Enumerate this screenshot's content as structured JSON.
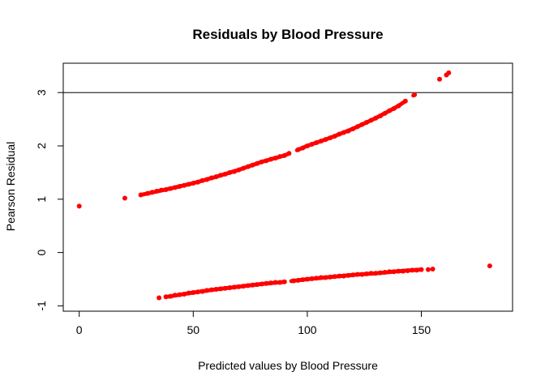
{
  "chart_data": {
    "type": "scatter",
    "title": "Residuals by Blood Pressure",
    "xlabel": "Predicted values by Blood Pressure",
    "ylabel": "Pearson Residual",
    "xlim": [
      -7,
      190
    ],
    "ylim": [
      -1.1,
      3.55
    ],
    "xticks": [
      0,
      50,
      100,
      150
    ],
    "yticks": [
      -1,
      0,
      1,
      2,
      3
    ],
    "point_color": "#ff0000",
    "hline": 3,
    "hline_color": "#000000",
    "grid": false,
    "upper_band_anchors": [
      [
        0,
        0.87
      ],
      [
        20,
        1.02
      ],
      [
        27,
        1.08
      ],
      [
        40,
        1.2
      ],
      [
        50,
        1.3
      ],
      [
        60,
        1.42
      ],
      [
        70,
        1.55
      ],
      [
        80,
        1.7
      ],
      [
        90,
        1.82
      ],
      [
        100,
        2.0
      ],
      [
        110,
        2.15
      ],
      [
        120,
        2.32
      ],
      [
        130,
        2.52
      ],
      [
        140,
        2.75
      ],
      [
        147,
        2.96
      ],
      [
        158,
        3.25
      ],
      [
        162,
        3.37
      ]
    ],
    "lower_band_anchors": [
      [
        35,
        -0.85
      ],
      [
        40,
        -0.82
      ],
      [
        50,
        -0.75
      ],
      [
        60,
        -0.69
      ],
      [
        70,
        -0.64
      ],
      [
        80,
        -0.59
      ],
      [
        90,
        -0.55
      ],
      [
        100,
        -0.5
      ],
      [
        110,
        -0.46
      ],
      [
        120,
        -0.42
      ],
      [
        130,
        -0.39
      ],
      [
        140,
        -0.35
      ],
      [
        150,
        -0.32
      ],
      [
        155,
        -0.31
      ],
      [
        180,
        -0.25
      ]
    ],
    "series": [
      {
        "values": [
          [
            0,
            0.87
          ],
          [
            20,
            1.02
          ],
          [
            27,
            1.08
          ],
          [
            30,
            1.11
          ],
          [
            32,
            1.13
          ],
          [
            34,
            1.15
          ],
          [
            36,
            1.17
          ],
          [
            38,
            1.18
          ],
          [
            40,
            1.2
          ],
          [
            42,
            1.22
          ],
          [
            44,
            1.24
          ],
          [
            46,
            1.26
          ],
          [
            48,
            1.28
          ],
          [
            50,
            1.3
          ],
          [
            52,
            1.32
          ],
          [
            54,
            1.35
          ],
          [
            56,
            1.37
          ],
          [
            58,
            1.4
          ],
          [
            60,
            1.42
          ],
          [
            62,
            1.45
          ],
          [
            64,
            1.47
          ],
          [
            66,
            1.5
          ],
          [
            68,
            1.52
          ],
          [
            70,
            1.55
          ],
          [
            72,
            1.58
          ],
          [
            74,
            1.61
          ],
          [
            76,
            1.64
          ],
          [
            78,
            1.67
          ],
          [
            80,
            1.7
          ],
          [
            82,
            1.72
          ],
          [
            84,
            1.75
          ],
          [
            86,
            1.77
          ],
          [
            88,
            1.8
          ],
          [
            90,
            1.82
          ],
          [
            92,
            1.86
          ],
          [
            96,
            1.93
          ],
          [
            98,
            1.96
          ],
          [
            100,
            2.0
          ],
          [
            102,
            2.03
          ],
          [
            104,
            2.06
          ],
          [
            106,
            2.09
          ],
          [
            108,
            2.12
          ],
          [
            110,
            2.15
          ],
          [
            112,
            2.18
          ],
          [
            114,
            2.22
          ],
          [
            116,
            2.25
          ],
          [
            118,
            2.28
          ],
          [
            120,
            2.32
          ],
          [
            122,
            2.36
          ],
          [
            124,
            2.4
          ],
          [
            126,
            2.44
          ],
          [
            128,
            2.48
          ],
          [
            130,
            2.52
          ],
          [
            132,
            2.56
          ],
          [
            134,
            2.61
          ],
          [
            136,
            2.66
          ],
          [
            138,
            2.7
          ],
          [
            140,
            2.75
          ],
          [
            143,
            2.84
          ],
          [
            147,
            2.96
          ],
          [
            158,
            3.25
          ],
          [
            161,
            3.33
          ],
          [
            162,
            3.37
          ],
          [
            35,
            -0.85
          ],
          [
            38,
            -0.83
          ],
          [
            40,
            -0.82
          ],
          [
            42,
            -0.8
          ],
          [
            44,
            -0.79
          ],
          [
            46,
            -0.78
          ],
          [
            48,
            -0.76
          ],
          [
            50,
            -0.75
          ],
          [
            52,
            -0.74
          ],
          [
            54,
            -0.73
          ],
          [
            56,
            -0.71
          ],
          [
            58,
            -0.7
          ],
          [
            60,
            -0.69
          ],
          [
            62,
            -0.68
          ],
          [
            64,
            -0.67
          ],
          [
            66,
            -0.66
          ],
          [
            68,
            -0.65
          ],
          [
            70,
            -0.64
          ],
          [
            72,
            -0.63
          ],
          [
            74,
            -0.62
          ],
          [
            76,
            -0.61
          ],
          [
            78,
            -0.6
          ],
          [
            80,
            -0.59
          ],
          [
            82,
            -0.58
          ],
          [
            84,
            -0.57
          ],
          [
            86,
            -0.56
          ],
          [
            88,
            -0.56
          ],
          [
            90,
            -0.55
          ],
          [
            94,
            -0.53
          ],
          [
            96,
            -0.52
          ],
          [
            98,
            -0.51
          ],
          [
            100,
            -0.5
          ],
          [
            102,
            -0.49
          ],
          [
            104,
            -0.48
          ],
          [
            106,
            -0.47
          ],
          [
            108,
            -0.47
          ],
          [
            110,
            -0.46
          ],
          [
            112,
            -0.45
          ],
          [
            114,
            -0.44
          ],
          [
            116,
            -0.44
          ],
          [
            118,
            -0.43
          ],
          [
            120,
            -0.42
          ],
          [
            122,
            -0.41
          ],
          [
            124,
            -0.41
          ],
          [
            126,
            -0.4
          ],
          [
            128,
            -0.39
          ],
          [
            130,
            -0.39
          ],
          [
            132,
            -0.38
          ],
          [
            134,
            -0.37
          ],
          [
            136,
            -0.36
          ],
          [
            138,
            -0.36
          ],
          [
            140,
            -0.35
          ],
          [
            142,
            -0.35
          ],
          [
            144,
            -0.34
          ],
          [
            146,
            -0.33
          ],
          [
            148,
            -0.33
          ],
          [
            150,
            -0.32
          ],
          [
            153,
            -0.32
          ],
          [
            155,
            -0.31
          ],
          [
            180,
            -0.25
          ]
        ]
      }
    ]
  }
}
